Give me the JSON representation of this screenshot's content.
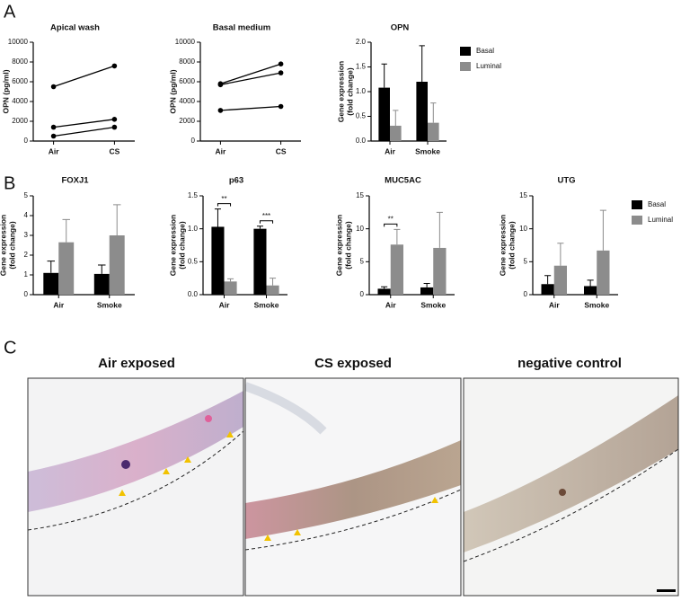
{
  "panel_labels": [
    "A",
    "B",
    "C"
  ],
  "chart_data": [
    {
      "type": "line",
      "title": "Apical wash",
      "ylabel": "OPN (pg/ml)",
      "categories": [
        "Air",
        "CS"
      ],
      "series": [
        {
          "color": "#000000",
          "values": [
            500,
            1400
          ]
        },
        {
          "color": "#000000",
          "values": [
            1400,
            2200
          ]
        },
        {
          "color": "#000000",
          "values": [
            5500,
            7600
          ]
        }
      ],
      "ylim": [
        0,
        10000
      ],
      "yticks": [
        0,
        2000,
        4000,
        6000,
        8000,
        10000
      ]
    },
    {
      "type": "line",
      "title": "Basal medium",
      "ylabel": "OPN (pg/ml)",
      "categories": [
        "Air",
        "CS"
      ],
      "series": [
        {
          "color": "#000000",
          "values": [
            3100,
            3500
          ]
        },
        {
          "color": "#000000",
          "values": [
            5700,
            6900
          ]
        },
        {
          "color": "#000000",
          "values": [
            5800,
            7800
          ]
        }
      ],
      "ylim": [
        0,
        10000
      ],
      "yticks": [
        0,
        2000,
        4000,
        6000,
        8000,
        10000
      ]
    },
    {
      "type": "bar",
      "title": "OPN",
      "ylabel": [
        "Gene expression",
        "(fold change)"
      ],
      "categories": [
        "Air",
        "Smoke"
      ],
      "series": [
        {
          "name": "Basal",
          "color": "#000000",
          "values": [
            1.08,
            1.2
          ],
          "errors": [
            0.48,
            0.73
          ]
        },
        {
          "name": "Luminal",
          "color": "#8c8c8c",
          "values": [
            0.31,
            0.37
          ],
          "errors": [
            0.31,
            0.4
          ]
        }
      ],
      "ylim": [
        0,
        2.0
      ],
      "yticks": [
        {
          "value": 0,
          "label": "0.0"
        },
        {
          "value": 0.5,
          "label": "0.5"
        },
        {
          "value": 1,
          "label": "1.0"
        },
        {
          "value": 1.5,
          "label": "1.5"
        },
        {
          "value": 2,
          "label": "2.0"
        }
      ],
      "legend": "right"
    },
    {
      "type": "bar",
      "title": "FOXJ1",
      "ylabel": [
        "Gene expression",
        "(fold change)"
      ],
      "categories": [
        "Air",
        "Smoke"
      ],
      "series": [
        {
          "name": "Basal",
          "color": "#000000",
          "values": [
            1.1,
            1.05
          ],
          "errors": [
            0.6,
            0.45
          ]
        },
        {
          "name": "Luminal",
          "color": "#8c8c8c",
          "values": [
            2.65,
            3.0
          ],
          "errors": [
            1.15,
            1.55
          ]
        }
      ],
      "ylim": [
        0,
        5
      ],
      "yticks": [
        0,
        1,
        2,
        3,
        4,
        5
      ]
    },
    {
      "type": "bar",
      "title": "p63",
      "ylabel": [
        "Gene expression",
        "(fold change)"
      ],
      "categories": [
        "Air",
        "Smoke"
      ],
      "series": [
        {
          "name": "Basal",
          "color": "#000000",
          "values": [
            1.03,
            1.0
          ],
          "errors": [
            0.27,
            0.04
          ]
        },
        {
          "name": "Luminal",
          "color": "#8c8c8c",
          "values": [
            0.2,
            0.14
          ],
          "errors": [
            0.04,
            0.11
          ]
        }
      ],
      "ylim": [
        0,
        1.5
      ],
      "yticks": [
        {
          "value": 0,
          "label": "0.0"
        },
        {
          "value": 0.5,
          "label": "0.5"
        },
        {
          "value": 1,
          "label": "1.0"
        },
        {
          "value": 1.5,
          "label": "1.5"
        }
      ],
      "annotations": [
        {
          "text": "**",
          "x": "Air"
        },
        {
          "text": "***",
          "x": "Smoke"
        }
      ]
    },
    {
      "type": "bar",
      "title": "MUC5AC",
      "ylabel": [
        "Gene expression",
        "(fold change)"
      ],
      "categories": [
        "Air",
        "Smoke"
      ],
      "series": [
        {
          "name": "Basal",
          "color": "#000000",
          "values": [
            0.9,
            1.1
          ],
          "errors": [
            0.3,
            0.6
          ]
        },
        {
          "name": "Luminal",
          "color": "#8c8c8c",
          "values": [
            7.6,
            7.1
          ],
          "errors": [
            2.3,
            5.4
          ]
        }
      ],
      "ylim": [
        0,
        15
      ],
      "yticks": [
        0,
        5,
        10,
        15
      ],
      "annotations": [
        {
          "text": "**",
          "x": "Air"
        }
      ]
    },
    {
      "type": "bar",
      "title": "UTG",
      "ylabel": [
        "Gene expression",
        "(fold change)"
      ],
      "categories": [
        "Air",
        "Smoke"
      ],
      "series": [
        {
          "name": "Basal",
          "color": "#000000",
          "values": [
            1.6,
            1.3
          ],
          "errors": [
            1.3,
            0.9
          ]
        },
        {
          "name": "Luminal",
          "color": "#8c8c8c",
          "values": [
            4.4,
            6.7
          ],
          "errors": [
            3.4,
            6.1
          ]
        }
      ],
      "ylim": [
        0,
        15
      ],
      "yticks": [
        0,
        5,
        10,
        15
      ],
      "legend": "right"
    }
  ],
  "images": [
    {
      "title": "Air exposed"
    },
    {
      "title": "CS exposed"
    },
    {
      "title": "negative control"
    }
  ]
}
